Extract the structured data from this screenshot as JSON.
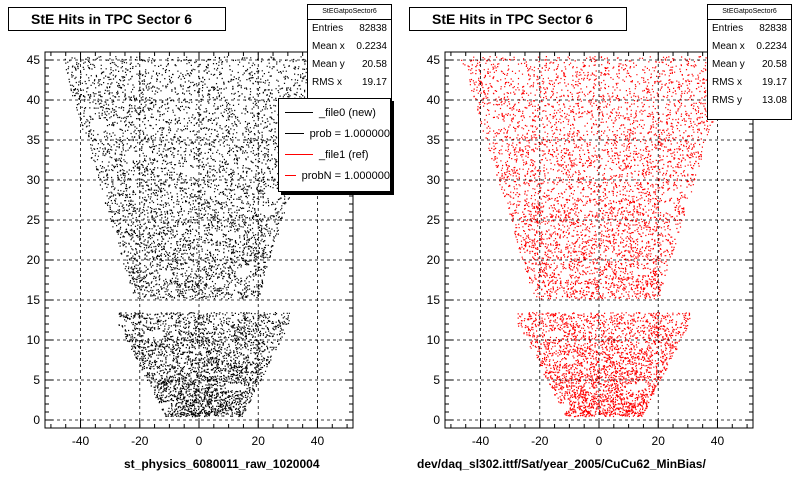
{
  "chart_data": [
    {
      "type": "scatter",
      "title": "StE Hits in TPC Sector 6",
      "xlabel": "st_physics_6080011_raw_1020004",
      "ylabel": "",
      "xlim": [
        -52,
        52
      ],
      "ylim": [
        -1,
        46
      ],
      "x_ticks": [
        -40,
        -20,
        0,
        20,
        40
      ],
      "y_ticks": [
        0,
        5,
        10,
        15,
        20,
        25,
        30,
        35,
        40,
        45
      ],
      "grid": true,
      "marker_color": "#000000",
      "stats": {
        "name": "StEGatpoSector6",
        "rows": [
          {
            "label": "Entries",
            "value": "82838"
          },
          {
            "label": "Mean x",
            "value": "0.2234"
          },
          {
            "label": "Mean y",
            "value": "20.58"
          },
          {
            "label": "RMS x",
            "value": "19.17"
          }
        ]
      },
      "legend": {
        "placement": "top-right",
        "entries": [
          {
            "label": "_file0 (new)",
            "color": "#000000"
          },
          {
            "label": "prob = 1.000000",
            "color": "#000000"
          },
          {
            "label": "_file1 (ref)",
            "color": "#ff0000"
          },
          {
            "label": "probN = 1.000000",
            "color": "#ff0000"
          }
        ]
      }
    },
    {
      "type": "scatter",
      "title": "StE Hits in TPC Sector 6",
      "xlabel": "dev/daq_sl302.ittf/Sat/year_2005/CuCu62_MinBias/",
      "ylabel": "",
      "xlim": [
        -52,
        52
      ],
      "ylim": [
        -1,
        46
      ],
      "x_ticks": [
        -40,
        -20,
        0,
        20,
        40
      ],
      "y_ticks": [
        0,
        5,
        10,
        15,
        20,
        25,
        30,
        35,
        40,
        45
      ],
      "grid": true,
      "marker_color": "#ff0000",
      "stats": {
        "name": "StEGatpoSector6",
        "rows": [
          {
            "label": "Entries",
            "value": "82838"
          },
          {
            "label": "Mean x",
            "value": "0.2234"
          },
          {
            "label": "Mean y",
            "value": "20.58"
          },
          {
            "label": "RMS x",
            "value": "19.17"
          },
          {
            "label": "RMS y",
            "value": "13.08"
          }
        ]
      }
    }
  ]
}
